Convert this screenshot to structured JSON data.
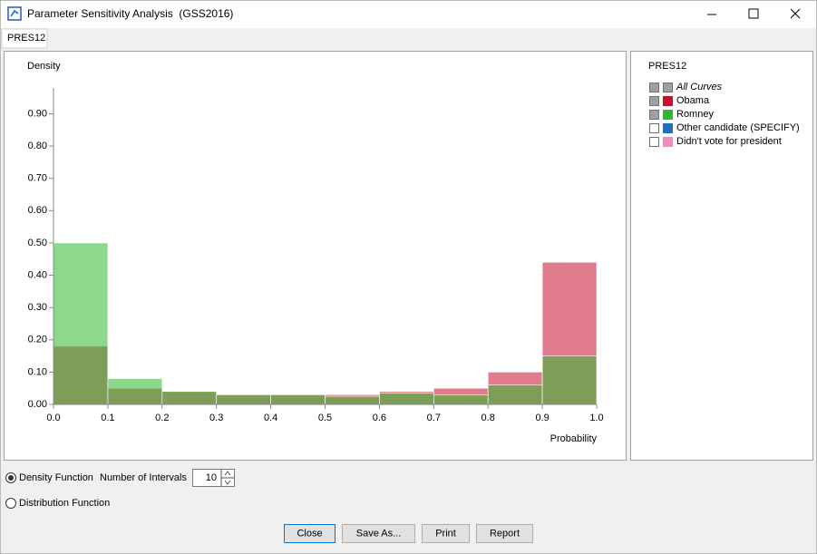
{
  "window": {
    "title": "Parameter Sensitivity Analysis  (GSS2016)",
    "tab": "PRES12"
  },
  "chart_data": {
    "type": "histogram",
    "y_label": "Density",
    "x_label": "Probability",
    "bins": [
      0,
      0.1,
      0.2,
      0.3,
      0.4,
      0.5,
      0.6,
      0.7,
      0.8,
      0.9,
      1
    ],
    "series": [
      {
        "name": "Obama",
        "color": "#c8102e",
        "values": [
          0.18,
          0.05,
          0.04,
          0.03,
          0.03,
          0.03,
          0.04,
          0.05,
          0.1,
          0.44
        ]
      },
      {
        "name": "Romney",
        "color": "#2eb82e",
        "values": [
          0.5,
          0.08,
          0.04,
          0.03,
          0.03,
          0.025,
          0.035,
          0.03,
          0.06,
          0.15
        ]
      }
    ],
    "xlim": [
      0,
      1
    ],
    "ylim": [
      0,
      0.98
    ],
    "xticks": [
      {
        "value": 0,
        "label": "0.0"
      },
      {
        "value": 0.1,
        "label": "0.1"
      },
      {
        "value": 0.2,
        "label": "0.2"
      },
      {
        "value": 0.3,
        "label": "0.3"
      },
      {
        "value": 0.4,
        "label": "0.4"
      },
      {
        "value": 0.5,
        "label": "0.5"
      },
      {
        "value": 0.6,
        "label": "0.6"
      },
      {
        "value": 0.7,
        "label": "0.7"
      },
      {
        "value": 0.8,
        "label": "0.8"
      },
      {
        "value": 0.9,
        "label": "0.9"
      },
      {
        "value": 1,
        "label": "1.0"
      }
    ],
    "yticks": [
      {
        "value": 0,
        "label": "0.00"
      },
      {
        "value": 0.1,
        "label": "0.10"
      },
      {
        "value": 0.2,
        "label": "0.20"
      },
      {
        "value": 0.3,
        "label": "0.30"
      },
      {
        "value": 0.4,
        "label": "0.40"
      },
      {
        "value": 0.5,
        "label": "0.50"
      },
      {
        "value": 0.6,
        "label": "0.60"
      },
      {
        "value": 0.7,
        "label": "0.70"
      },
      {
        "value": 0.8,
        "label": "0.80"
      },
      {
        "value": 0.9,
        "label": "0.90"
      }
    ],
    "grid": false
  },
  "legend": {
    "title": "PRES12",
    "all_label": "All Curves",
    "other_items": [
      {
        "name": "Other candidate (SPECIFY)",
        "color": "#1f6fc5"
      },
      {
        "name": "Didn't vote for president",
        "color": "#f08cc0"
      }
    ]
  },
  "controls": {
    "density": "Density Function",
    "intervals_label": "Number of Intervals",
    "intervals": 10,
    "distribution": "Distribution Function",
    "buttons": [
      "Close",
      "Save As...",
      "Print",
      "Report"
    ]
  }
}
